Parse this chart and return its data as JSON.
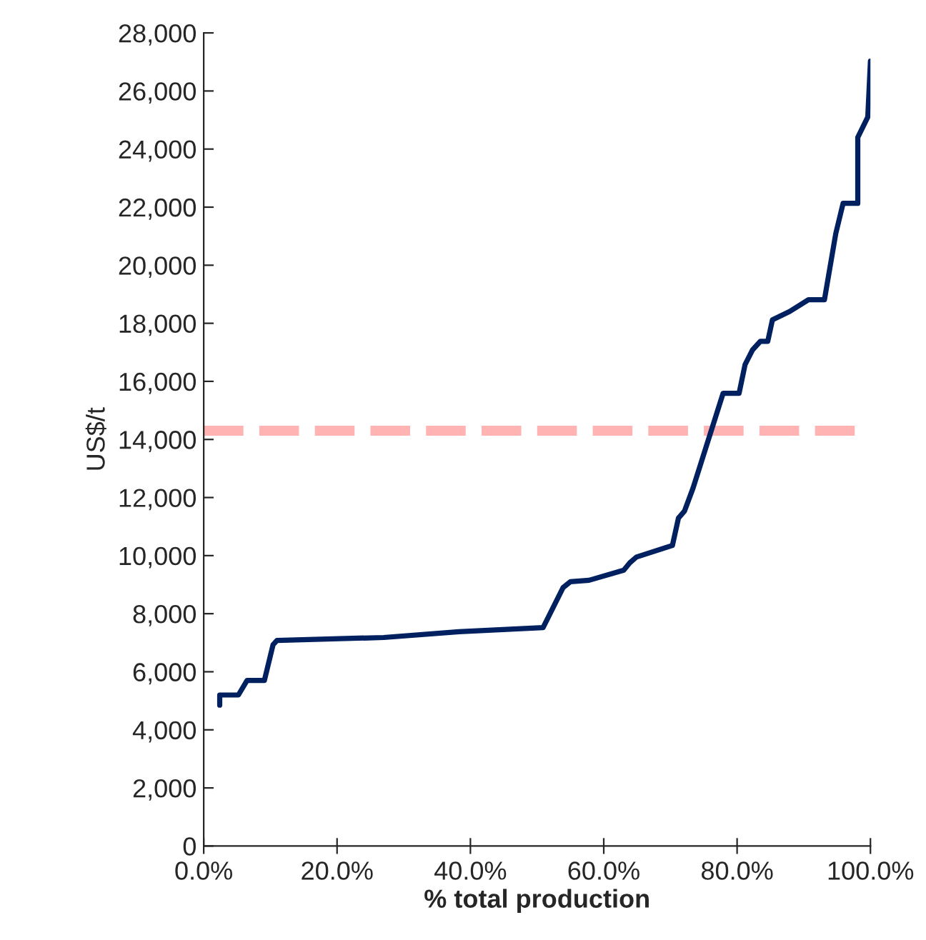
{
  "chart_data": {
    "type": "line",
    "xlabel": "% total production",
    "ylabel": "US$/t",
    "x": [
      2.4,
      2.4,
      5.2,
      6.5,
      9.1,
      10.4,
      11.0,
      27,
      38.3,
      50.9,
      53.9,
      55,
      57.8,
      63,
      63.9,
      64.9,
      70.3,
      71.2,
      72.1,
      73.4,
      77.9,
      80.3,
      81.2,
      82.3,
      83.5,
      84.6,
      85.3,
      87.9,
      90.7,
      93.1,
      94.8,
      95.9,
      98.1,
      98.1,
      99.6,
      100
    ],
    "series": [
      {
        "color": "#002060",
        "values": [
          4850,
          5200,
          5200,
          5700,
          5700,
          6930,
          7080,
          7180,
          7380,
          7520,
          8900,
          9100,
          9150,
          9500,
          9750,
          9950,
          10350,
          11290,
          11530,
          12330,
          15590,
          15590,
          16580,
          17080,
          17380,
          17380,
          18120,
          18410,
          18810,
          18810,
          21090,
          22130,
          22130,
          24400,
          25100,
          27030
        ]
      }
    ],
    "xlim": [
      0,
      100
    ],
    "xticks": [
      {
        "value": 0,
        "label": "0.0%"
      },
      {
        "value": 20,
        "label": "20.0%"
      },
      {
        "value": 40,
        "label": "40.0%"
      },
      {
        "value": 60,
        "label": "60.0%"
      },
      {
        "value": 80,
        "label": "80.0%"
      },
      {
        "value": 100,
        "label": "100.0%"
      }
    ],
    "ylim": [
      0,
      28000
    ],
    "yticks": [
      {
        "value": 0,
        "label": "0"
      },
      {
        "value": 2000,
        "label": "2,000"
      },
      {
        "value": 4000,
        "label": "4,000"
      },
      {
        "value": 6000,
        "label": "6,000"
      },
      {
        "value": 8000,
        "label": "8,000"
      },
      {
        "value": 10000,
        "label": "10,000"
      },
      {
        "value": 12000,
        "label": "12,000"
      },
      {
        "value": 14000,
        "label": "14,000"
      },
      {
        "value": 16000,
        "label": "16,000"
      },
      {
        "value": 18000,
        "label": "18,000"
      },
      {
        "value": 20000,
        "label": "20,000"
      },
      {
        "value": 22000,
        "label": "22,000"
      },
      {
        "value": 24000,
        "label": "24,000"
      },
      {
        "value": 26000,
        "label": "26,000"
      },
      {
        "value": 28000,
        "label": "28,000"
      }
    ],
    "ref_lines": [
      {
        "axis": "y",
        "value": 14300,
        "label": null,
        "color": "#ffb3b3",
        "line_style": "dashed"
      }
    ],
    "line_style": "solid",
    "grid": false,
    "legend": false
  }
}
